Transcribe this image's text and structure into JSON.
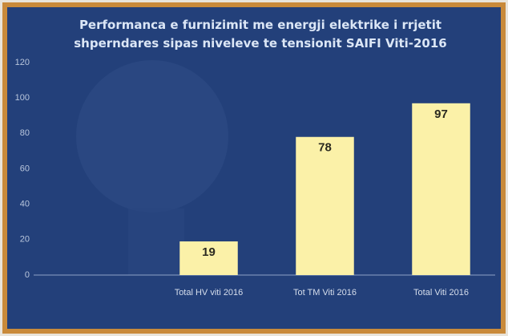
{
  "chart_data": {
    "type": "bar",
    "title": "Performanca e furnizimit me energji elektrike i rrjetit shperndares sipas niveleve te tensionit SAIFI Viti-2016",
    "categories": [
      "Total HV viti 2016",
      "Tot TM Viti 2016",
      "Total Viti 2016"
    ],
    "values": [
      19,
      78,
      97
    ],
    "color": "#fbf1a8",
    "ylim": [
      0,
      120
    ],
    "yticks": [
      0,
      20,
      40,
      60,
      80,
      100,
      120
    ],
    "grid": false
  }
}
